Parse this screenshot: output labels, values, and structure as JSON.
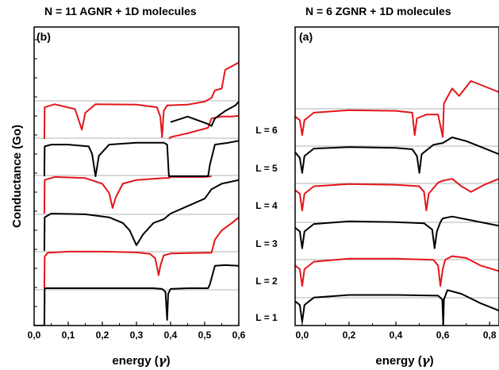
{
  "colors": {
    "black": "#000000",
    "red": "#e4161b",
    "baseline": "#9a9a9a"
  },
  "chart_data": [
    {
      "type": "line",
      "panel": "(b)",
      "title": "N = 11 AGNR + 1D molecules",
      "xlabel": "energy (γ)",
      "xlabel_main": "energy (",
      "xlabel_sym": "γ",
      "xlabel_end": ")",
      "ylabel": "Conductance (Go)",
      "xlim": [
        0.0,
        0.6
      ],
      "xticks": [
        0.0,
        0.1,
        0.2,
        0.3,
        0.4,
        0.5,
        0.6
      ],
      "xtick_labels": [
        "0,0",
        "0,1",
        "0,2",
        "0,3",
        "0,4",
        "0,5",
        "0,6"
      ],
      "baselines": [
        1,
        2,
        3,
        4,
        5
      ],
      "series": [
        {
          "L": 1,
          "color": "black",
          "points": [
            [
              0.0,
              0
            ],
            [
              0.03,
              0
            ],
            [
              0.031,
              1.0
            ],
            [
              0.1,
              1.0
            ],
            [
              0.2,
              1.0
            ],
            [
              0.3,
              1.0
            ],
            [
              0.35,
              1.0
            ],
            [
              0.375,
              0.98
            ],
            [
              0.385,
              0.9
            ],
            [
              0.39,
              0.15
            ],
            [
              0.393,
              0.85
            ],
            [
              0.4,
              0.98
            ],
            [
              0.45,
              1.0
            ],
            [
              0.51,
              1.0
            ],
            [
              0.515,
              1.1
            ],
            [
              0.53,
              1.6
            ],
            [
              0.56,
              1.62
            ],
            [
              0.6,
              1.6
            ]
          ]
        },
        {
          "L": 2,
          "color": "red",
          "points": [
            [
              0.03,
              0
            ],
            [
              0.031,
              0.85
            ],
            [
              0.04,
              0.95
            ],
            [
              0.1,
              0.98
            ],
            [
              0.2,
              0.98
            ],
            [
              0.3,
              0.96
            ],
            [
              0.34,
              0.92
            ],
            [
              0.355,
              0.8
            ],
            [
              0.365,
              0.35
            ],
            [
              0.37,
              0.6
            ],
            [
              0.38,
              0.88
            ],
            [
              0.4,
              0.93
            ],
            [
              0.45,
              0.94
            ],
            [
              0.51,
              0.95
            ],
            [
              0.52,
              0.95
            ],
            [
              0.53,
              1.3
            ],
            [
              0.55,
              1.55
            ],
            [
              0.58,
              1.75
            ],
            [
              0.6,
              1.9
            ]
          ]
        },
        {
          "L": 3,
          "color": "black",
          "points": [
            [
              0.03,
              0
            ],
            [
              0.031,
              0.9
            ],
            [
              0.05,
              1.0
            ],
            [
              0.15,
              0.98
            ],
            [
              0.22,
              0.9
            ],
            [
              0.26,
              0.75
            ],
            [
              0.28,
              0.55
            ],
            [
              0.3,
              0.15
            ],
            [
              0.32,
              0.45
            ],
            [
              0.35,
              0.75
            ],
            [
              0.38,
              0.85
            ],
            [
              0.4,
              1.0
            ],
            [
              0.45,
              1.2
            ],
            [
              0.5,
              1.4
            ],
            [
              0.52,
              1.65
            ],
            [
              0.55,
              1.8
            ],
            [
              0.6,
              1.9
            ]
          ]
        },
        {
          "L": 4,
          "color": "red",
          "points": [
            [
              0.03,
              0
            ],
            [
              0.031,
              0.9
            ],
            [
              0.06,
              0.98
            ],
            [
              0.15,
              0.95
            ],
            [
              0.2,
              0.8
            ],
            [
              0.22,
              0.55
            ],
            [
              0.23,
              0.15
            ],
            [
              0.24,
              0.45
            ],
            [
              0.26,
              0.8
            ],
            [
              0.3,
              0.9
            ],
            [
              0.38,
              0.95
            ],
            [
              0.395,
              0.95
            ],
            [
              0.4,
              0.98
            ],
            [
              0.44,
              0.98
            ],
            [
              0.5,
              0.98
            ],
            [
              0.52,
              1.0
            ]
          ]
        },
        {
          "L": 5,
          "color": "black",
          "points": [
            [
              0.03,
              0
            ],
            [
              0.031,
              0.8
            ],
            [
              0.05,
              0.85
            ],
            [
              0.1,
              0.85
            ],
            [
              0.16,
              0.8
            ],
            [
              0.17,
              0.6
            ],
            [
              0.18,
              0.0
            ],
            [
              0.19,
              0.55
            ],
            [
              0.22,
              0.85
            ],
            [
              0.3,
              0.9
            ],
            [
              0.38,
              0.9
            ],
            [
              0.39,
              0.85
            ],
            [
              0.395,
              0.0
            ],
            [
              0.4,
              0.0
            ],
            [
              0.45,
              0.0
            ],
            [
              0.51,
              0.0
            ],
            [
              0.515,
              0.3
            ],
            [
              0.53,
              0.85
            ],
            [
              0.57,
              0.9
            ],
            [
              0.6,
              0.95
            ]
          ]
        },
        {
          "L": 6,
          "color": "red",
          "points": [
            [
              0.03,
              0
            ],
            [
              0.031,
              0.85
            ],
            [
              0.06,
              0.93
            ],
            [
              0.12,
              0.8
            ],
            [
              0.14,
              0.25
            ],
            [
              0.15,
              0.7
            ],
            [
              0.18,
              0.93
            ],
            [
              0.3,
              0.92
            ],
            [
              0.36,
              0.85
            ],
            [
              0.37,
              0.6
            ],
            [
              0.375,
              0.05
            ],
            [
              0.38,
              0.75
            ],
            [
              0.39,
              0.9
            ],
            [
              0.45,
              0.92
            ],
            [
              0.5,
              1.0
            ],
            [
              0.52,
              1.1
            ],
            [
              0.53,
              1.3
            ],
            [
              0.55,
              1.35
            ],
            [
              0.56,
              1.85
            ],
            [
              0.6,
              2.05
            ]
          ]
        },
        {
          "L": 6,
          "color": "red",
          "points": [
            [
              0.395,
              0.0
            ],
            [
              0.4,
              0.05
            ],
            [
              0.45,
              0.15
            ],
            [
              0.51,
              0.3
            ],
            [
              0.52,
              0.55
            ],
            [
              0.55,
              0.6
            ],
            [
              0.58,
              0.6
            ],
            [
              0.6,
              0.62
            ]
          ]
        },
        {
          "L": 6,
          "color": "black",
          "points": [
            [
              0.4,
              0.45
            ],
            [
              0.45,
              0.6
            ],
            [
              0.51,
              0.4
            ],
            [
              0.52,
              0.35
            ],
            [
              0.53,
              0.55
            ],
            [
              0.56,
              0.75
            ],
            [
              0.59,
              0.9
            ],
            [
              0.6,
              1.0
            ]
          ]
        }
      ]
    },
    {
      "type": "line",
      "panel": "(a)",
      "title": "N = 6  ZGNR + 1D molecules",
      "xlabel": "energy (γ)",
      "xlabel_main": "energy (",
      "xlabel_sym": "γ",
      "xlabel_end": ")",
      "xlim": [
        -0.03,
        0.84
      ],
      "xticks": [
        0.0,
        0.2,
        0.4,
        0.6,
        0.8
      ],
      "xtick_labels": [
        "0,0",
        "0,2",
        "0,4",
        "0,6",
        "0,8"
      ],
      "level_labels": [
        "L = 1",
        "L = 2",
        "L = 3",
        "L = 4",
        "L = 5",
        "L = 6"
      ],
      "series": [
        {
          "L": 1,
          "color": "black",
          "points": [
            [
              -0.03,
              0.65
            ],
            [
              -0.01,
              0.55
            ],
            [
              0.0,
              0.1
            ],
            [
              0.01,
              0.55
            ],
            [
              0.05,
              0.75
            ],
            [
              0.2,
              0.82
            ],
            [
              0.4,
              0.82
            ],
            [
              0.58,
              0.8
            ],
            [
              0.598,
              0.7
            ],
            [
              0.602,
              0.0
            ],
            [
              0.605,
              0.7
            ],
            [
              0.62,
              0.95
            ],
            [
              0.68,
              0.85
            ],
            [
              0.76,
              0.6
            ],
            [
              0.84,
              0.4
            ]
          ]
        },
        {
          "L": 2,
          "color": "red",
          "points": [
            [
              -0.03,
              0.6
            ],
            [
              -0.01,
              0.5
            ],
            [
              0.0,
              0.05
            ],
            [
              0.01,
              0.5
            ],
            [
              0.05,
              0.7
            ],
            [
              0.2,
              0.78
            ],
            [
              0.4,
              0.78
            ],
            [
              0.56,
              0.75
            ],
            [
              0.58,
              0.6
            ],
            [
              0.59,
              0.05
            ],
            [
              0.6,
              0.5
            ],
            [
              0.61,
              0.75
            ],
            [
              0.64,
              0.85
            ],
            [
              0.7,
              0.8
            ],
            [
              0.76,
              0.6
            ],
            [
              0.84,
              0.45
            ]
          ]
        },
        {
          "L": 3,
          "color": "black",
          "points": [
            [
              -0.03,
              0.6
            ],
            [
              -0.01,
              0.5
            ],
            [
              0.0,
              0.05
            ],
            [
              0.01,
              0.5
            ],
            [
              0.05,
              0.7
            ],
            [
              0.2,
              0.77
            ],
            [
              0.4,
              0.75
            ],
            [
              0.52,
              0.72
            ],
            [
              0.555,
              0.55
            ],
            [
              0.565,
              0.05
            ],
            [
              0.575,
              0.5
            ],
            [
              0.59,
              0.75
            ],
            [
              0.6,
              0.85
            ],
            [
              0.64,
              0.9
            ],
            [
              0.72,
              0.8
            ],
            [
              0.84,
              0.65
            ]
          ]
        },
        {
          "L": 4,
          "color": "red",
          "points": [
            [
              -0.03,
              0.6
            ],
            [
              -0.01,
              0.5
            ],
            [
              0.0,
              0.05
            ],
            [
              0.01,
              0.5
            ],
            [
              0.05,
              0.7
            ],
            [
              0.2,
              0.76
            ],
            [
              0.4,
              0.74
            ],
            [
              0.5,
              0.7
            ],
            [
              0.52,
              0.55
            ],
            [
              0.53,
              0.05
            ],
            [
              0.54,
              0.5
            ],
            [
              0.58,
              0.8
            ],
            [
              0.6,
              0.85
            ],
            [
              0.64,
              0.9
            ],
            [
              0.68,
              0.7
            ],
            [
              0.72,
              0.55
            ],
            [
              0.78,
              0.75
            ],
            [
              0.84,
              0.9
            ]
          ]
        },
        {
          "L": 5,
          "color": "black",
          "points": [
            [
              -0.03,
              0.6
            ],
            [
              -0.01,
              0.45
            ],
            [
              0.0,
              0.05
            ],
            [
              0.01,
              0.5
            ],
            [
              0.05,
              0.7
            ],
            [
              0.2,
              0.74
            ],
            [
              0.4,
              0.72
            ],
            [
              0.47,
              0.68
            ],
            [
              0.49,
              0.5
            ],
            [
              0.5,
              0.05
            ],
            [
              0.51,
              0.55
            ],
            [
              0.56,
              0.8
            ],
            [
              0.6,
              0.85
            ],
            [
              0.64,
              1.0
            ],
            [
              0.7,
              0.9
            ],
            [
              0.78,
              0.7
            ],
            [
              0.84,
              0.55
            ]
          ]
        },
        {
          "L": 6,
          "color": "red",
          "points": [
            [
              -0.03,
              0.55
            ],
            [
              -0.01,
              0.45
            ],
            [
              0.0,
              0.05
            ],
            [
              0.01,
              0.45
            ],
            [
              0.05,
              0.65
            ],
            [
              0.2,
              0.72
            ],
            [
              0.4,
              0.7
            ],
            [
              0.47,
              0.65
            ],
            [
              0.48,
              0.05
            ],
            [
              0.49,
              0.5
            ],
            [
              0.53,
              0.6
            ],
            [
              0.58,
              0.6
            ],
            [
              0.6,
              0.0
            ],
            [
              0.605,
              0.9
            ],
            [
              0.64,
              1.3
            ],
            [
              0.67,
              1.1
            ],
            [
              0.72,
              1.5
            ],
            [
              0.78,
              1.35
            ],
            [
              0.84,
              1.2
            ]
          ]
        }
      ]
    }
  ]
}
